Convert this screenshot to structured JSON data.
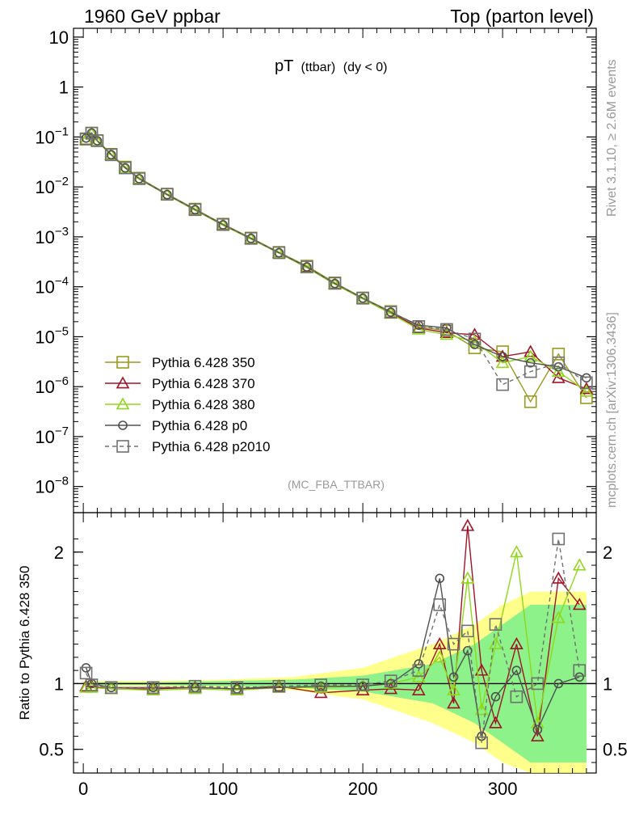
{
  "header": {
    "left": "1960 GeV ppbar",
    "right": "Top (parton level)"
  },
  "plot_title": {
    "main": "pT",
    "sub": "(ttbar)",
    "cond": "(dy < 0)"
  },
  "side": {
    "rivet": "Rivet 3.1.10, ≥ 2.6M events",
    "mcplots": "mcplots.cern.ch [arXiv:1306.3436]"
  },
  "analysis_label": "(MC_FBA_TTBAR)",
  "ratio_ylabel": "Ratio to Pythia 6.428 350",
  "chart_data": [
    {
      "type": "line",
      "panel": "main",
      "yscale": "log",
      "ylim": [
        3e-09,
        15
      ],
      "xlim": [
        -7,
        367
      ],
      "yticks": [
        {
          "v": 1e-08,
          "base": "10",
          "exp": "−8"
        },
        {
          "v": 1e-07,
          "base": "10",
          "exp": "−7"
        },
        {
          "v": 1e-06,
          "base": "10",
          "exp": "−6"
        },
        {
          "v": 1e-05,
          "base": "10",
          "exp": "−5"
        },
        {
          "v": 0.0001,
          "base": "10",
          "exp": "−4"
        },
        {
          "v": 0.001,
          "base": "10",
          "exp": "−3"
        },
        {
          "v": 0.01,
          "base": "10",
          "exp": "−2"
        },
        {
          "v": 0.1,
          "base": "10",
          "exp": "−1"
        },
        {
          "v": 1,
          "base": "1",
          "exp": ""
        },
        {
          "v": 10,
          "base": "10",
          "exp": ""
        }
      ],
      "legend_position": "bottom-left",
      "series": [
        {
          "name": "Pythia 6.428 350",
          "color": "#9a9a1e",
          "marker": "square-open",
          "dash": "solid",
          "x": [
            2,
            6,
            10,
            20,
            30,
            40,
            60,
            80,
            100,
            120,
            140,
            160,
            180,
            200,
            220,
            240,
            260,
            280,
            300,
            320,
            340,
            360
          ],
          "y": [
            0.09,
            0.12,
            0.085,
            0.045,
            0.025,
            0.015,
            0.0072,
            0.0036,
            0.0018,
            0.00095,
            0.00049,
            0.00026,
            0.00012,
            6e-05,
            3.2e-05,
            1.6e-05,
            1.3e-05,
            6e-06,
            5e-06,
            5e-07,
            4.5e-06,
            6e-07
          ]
        },
        {
          "name": "Pythia 6.428 370",
          "color": "#a01428",
          "marker": "triangle-open",
          "dash": "solid",
          "x": [
            2,
            6,
            10,
            20,
            30,
            40,
            60,
            80,
            100,
            120,
            140,
            160,
            180,
            200,
            220,
            240,
            260,
            280,
            300,
            320,
            340,
            360
          ],
          "y": [
            0.088,
            0.118,
            0.083,
            0.044,
            0.024,
            0.0145,
            0.007,
            0.0035,
            0.00175,
            0.00092,
            0.00048,
            0.00025,
            0.000115,
            5.8e-05,
            3e-05,
            1.5e-05,
            1.2e-05,
            1.1e-05,
            4e-06,
            5e-06,
            1.5e-06,
            9e-07
          ]
        },
        {
          "name": "Pythia 6.428 380",
          "color": "#8fd81c",
          "marker": "triangle-open",
          "dash": "solid",
          "x": [
            2,
            6,
            10,
            20,
            30,
            40,
            60,
            80,
            100,
            120,
            140,
            160,
            180,
            200,
            220,
            240,
            260,
            280,
            300,
            320,
            340,
            360
          ],
          "y": [
            0.087,
            0.116,
            0.082,
            0.043,
            0.024,
            0.0143,
            0.0069,
            0.0034,
            0.0017,
            0.0009,
            0.00047,
            0.00024,
            0.000112,
            5.7e-05,
            2.9e-05,
            1.4e-05,
            1.1e-05,
            8e-06,
            3e-06,
            4e-06,
            2e-06,
            8e-07
          ]
        },
        {
          "name": "Pythia 6.428 p0",
          "color": "#505050",
          "marker": "circle-open",
          "dash": "solid",
          "x": [
            2,
            6,
            10,
            20,
            30,
            40,
            60,
            80,
            100,
            120,
            140,
            160,
            180,
            200,
            220,
            240,
            260,
            280,
            300,
            320,
            340,
            360
          ],
          "y": [
            0.095,
            0.12,
            0.084,
            0.044,
            0.024,
            0.0146,
            0.007,
            0.0035,
            0.00174,
            0.00093,
            0.00048,
            0.00025,
            0.000116,
            5.9e-05,
            3.1e-05,
            1.7e-05,
            1.5e-05,
            7e-06,
            4e-06,
            3e-06,
            2.5e-06,
            1.5e-06
          ]
        },
        {
          "name": "Pythia 6.428 p2010",
          "color": "#707070",
          "marker": "square-open",
          "dash": "dashed",
          "x": [
            2,
            6,
            10,
            20,
            30,
            40,
            60,
            80,
            100,
            120,
            140,
            160,
            180,
            200,
            220,
            240,
            260,
            280,
            300,
            320,
            340,
            360
          ],
          "y": [
            0.092,
            0.119,
            0.084,
            0.044,
            0.024,
            0.0146,
            0.0071,
            0.0035,
            0.00176,
            0.00093,
            0.00048,
            0.00025,
            0.000117,
            5.9e-05,
            3.1e-05,
            1.6e-05,
            1.4e-05,
            9e-06,
            1.1e-06,
            2e-06,
            3e-06,
            1.2e-06
          ]
        }
      ]
    },
    {
      "type": "line",
      "panel": "ratio",
      "ylabel": "Ratio to Pythia 6.428 350",
      "ylim": [
        0.32,
        2.3
      ],
      "xlim": [
        -7,
        367
      ],
      "xticks": [
        0,
        100,
        200,
        300
      ],
      "yticks": [
        0.5,
        1,
        2
      ],
      "reference_line": 1,
      "bands": [
        {
          "color": "#ffff66",
          "x": [
            0,
            50,
            100,
            150,
            200,
            250,
            280,
            300,
            320,
            340,
            360
          ],
          "half_width": [
            0.02,
            0.02,
            0.03,
            0.05,
            0.12,
            0.3,
            0.45,
            0.6,
            0.7,
            0.7,
            0.7
          ]
        },
        {
          "color": "#66ee88",
          "x": [
            0,
            50,
            100,
            150,
            200,
            250,
            280,
            300,
            320,
            340,
            360
          ],
          "half_width": [
            0.01,
            0.01,
            0.02,
            0.03,
            0.06,
            0.15,
            0.3,
            0.45,
            0.6,
            0.6,
            0.6
          ]
        }
      ],
      "series": [
        {
          "name": "Pythia 6.428 370",
          "x": [
            2,
            6,
            20,
            50,
            80,
            110,
            140,
            170,
            200,
            220,
            240,
            255,
            265,
            275,
            285,
            295,
            310,
            325,
            340,
            355
          ],
          "y": [
            0.98,
            0.98,
            0.96,
            0.96,
            0.97,
            0.96,
            0.98,
            0.93,
            0.95,
            0.96,
            0.95,
            1.3,
            0.85,
            2.2,
            1.1,
            0.7,
            1.3,
            0.6,
            1.8,
            1.6
          ]
        },
        {
          "name": "Pythia 6.428 380",
          "x": [
            2,
            6,
            20,
            50,
            80,
            110,
            140,
            170,
            200,
            220,
            240,
            255,
            265,
            275,
            285,
            295,
            310,
            325,
            340,
            355
          ],
          "y": [
            0.97,
            0.97,
            0.96,
            0.95,
            0.96,
            0.95,
            0.97,
            0.97,
            0.98,
            1.0,
            1.05,
            1.2,
            0.95,
            1.8,
            0.8,
            1.3,
            2.0,
            0.7,
            1.5,
            1.9
          ]
        },
        {
          "name": "Pythia 6.428 p0",
          "x": [
            2,
            6,
            20,
            50,
            80,
            110,
            140,
            170,
            200,
            220,
            240,
            255,
            265,
            275,
            285,
            295,
            310,
            325,
            340,
            355
          ],
          "y": [
            1.12,
            1.0,
            0.97,
            0.97,
            0.97,
            0.96,
            0.97,
            0.98,
            0.98,
            1.0,
            1.15,
            1.8,
            1.05,
            1.25,
            0.6,
            0.9,
            1.1,
            0.65,
            1.0,
            1.05
          ]
        },
        {
          "name": "Pythia 6.428 p2010",
          "x": [
            2,
            6,
            20,
            50,
            80,
            110,
            140,
            170,
            200,
            220,
            240,
            255,
            265,
            275,
            285,
            295,
            310,
            325,
            340,
            355
          ],
          "y": [
            1.08,
            0.99,
            0.97,
            0.97,
            0.98,
            0.97,
            0.98,
            0.99,
            0.99,
            1.02,
            1.1,
            1.6,
            1.3,
            1.4,
            0.55,
            1.45,
            0.9,
            1.0,
            2.1,
            1.1
          ]
        }
      ]
    }
  ]
}
